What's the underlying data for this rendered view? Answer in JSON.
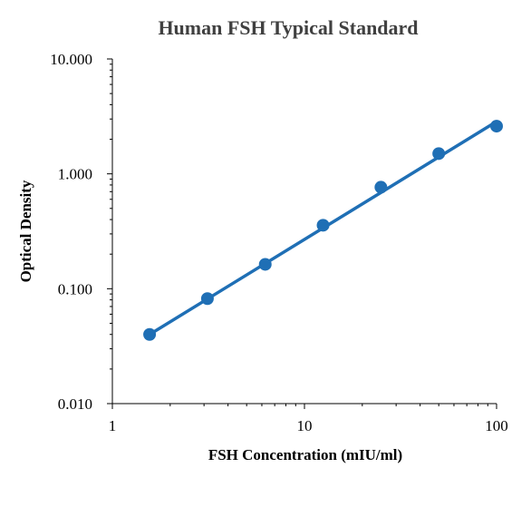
{
  "chart_data": {
    "type": "scatter",
    "title": "Human FSH Typical Standard",
    "xlabel": "FSH Concentration (mIU/ml)",
    "ylabel": "Optical Density",
    "x_scale": "log",
    "y_scale": "log",
    "xlim": [
      1,
      100
    ],
    "ylim": [
      0.01,
      10
    ],
    "x_ticks": [
      "1",
      "10",
      "100"
    ],
    "y_ticks": [
      "10.000",
      "1.000",
      "0.100",
      "0.010"
    ],
    "grid": false,
    "legend": "none",
    "marker_color": "#1f6fb5",
    "line_color": "#1f6fb5",
    "series": [
      {
        "x": [
          1.5625,
          3.125,
          6.25,
          12.5,
          25,
          50,
          100
        ],
        "y": [
          0.04,
          0.082,
          0.163,
          0.357,
          0.765,
          1.5,
          2.6
        ]
      }
    ],
    "fit_line": {
      "x": [
        1.5625,
        100
      ],
      "y": [
        0.04,
        2.85
      ]
    }
  }
}
